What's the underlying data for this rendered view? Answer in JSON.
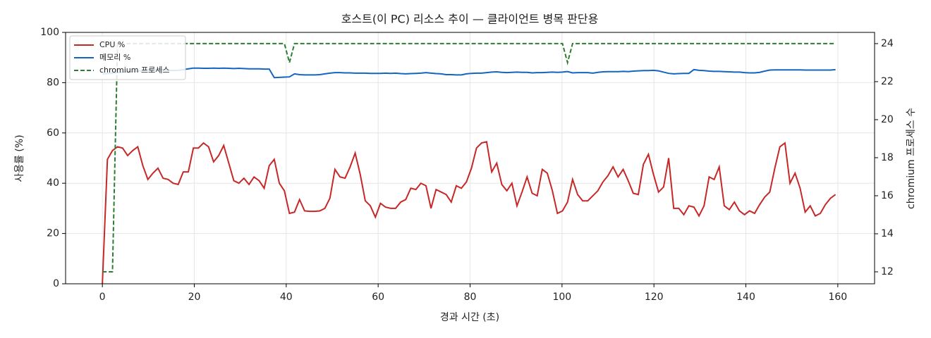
{
  "chart_data": {
    "type": "line",
    "title": "호스트(이 PC) 리소스 추이 — 클라이언트 병목 판단용",
    "xlabel": "경과 시간 (초)",
    "ylabel": "사용률 (%)",
    "y2label": "chromium 프로세스 수",
    "x": [
      0,
      1.1,
      2.2,
      3.3,
      4.4,
      5.5,
      6.6,
      7.7,
      8.8,
      9.9,
      11,
      12.1,
      13.2,
      14.3,
      15.4,
      16.5,
      17.6,
      18.7,
      19.8,
      20.9,
      22,
      23.1,
      24.2,
      25.3,
      26.4,
      27.5,
      28.6,
      29.7,
      30.8,
      31.9,
      33,
      34.1,
      35.2,
      36.3,
      37.4,
      38.5,
      39.6,
      40.7,
      41.8,
      42.9,
      44,
      45.1,
      46.2,
      47.3,
      48.4,
      49.5,
      50.6,
      51.7,
      52.8,
      53.9,
      55,
      56.1,
      57.2,
      58.3,
      59.4,
      60.5,
      61.6,
      62.7,
      63.8,
      64.9,
      66,
      67.1,
      68.2,
      69.3,
      70.4,
      71.5,
      72.6,
      73.7,
      74.8,
      75.9,
      77,
      78.1,
      79.2,
      80.3,
      81.4,
      82.5,
      83.6,
      84.7,
      85.8,
      86.9,
      88,
      89.1,
      90.2,
      91.3,
      92.4,
      93.5,
      94.6,
      95.7,
      96.8,
      97.9,
      99,
      100.1,
      101.2,
      102.3,
      103.4,
      104.5,
      105.6,
      106.7,
      107.8,
      108.9,
      110,
      111.1,
      112.2,
      113.3,
      114.4,
      115.5,
      116.6,
      117.7,
      118.8,
      119.9,
      121,
      122.1,
      123.2,
      124.3,
      125.4,
      126.5,
      127.6,
      128.7,
      129.8,
      130.9,
      132,
      133.1,
      134.2,
      135.3,
      136.4,
      137.5,
      138.6,
      139.7,
      140.8,
      141.9,
      143,
      144.1,
      145.2,
      146.3,
      147.4,
      148.5,
      149.6,
      150.7,
      151.8,
      152.9,
      154,
      155.1,
      156.2,
      157.3,
      158.4,
      159.5
    ],
    "series": [
      {
        "name": "CPU %",
        "color": "#c62828",
        "axis": "y",
        "dash": false,
        "values": [
          0,
          49.5,
          53,
          54.5,
          54,
          51,
          53,
          54.5,
          47,
          41.5,
          44,
          46,
          42,
          41.5,
          40,
          39.5,
          44.5,
          44.5,
          54,
          54,
          56,
          54.5,
          48.5,
          51,
          55,
          48,
          41,
          40,
          42,
          39.5,
          42.5,
          41,
          38,
          47,
          49.5,
          40,
          37,
          28,
          28.5,
          33.5,
          29,
          28.8,
          28.8,
          29,
          30,
          34,
          45.5,
          42.5,
          42,
          46.5,
          52,
          43.5,
          33,
          31,
          26.5,
          32,
          30.5,
          30,
          30,
          32.5,
          33.5,
          38,
          37.5,
          40,
          39,
          30,
          37.5,
          36.5,
          35.5,
          32.5,
          39,
          38,
          40.5,
          46,
          54,
          56,
          56.5,
          44.5,
          48,
          39.5,
          37,
          40,
          31,
          36.5,
          42.5,
          36,
          35,
          45.5,
          44,
          37,
          28,
          29,
          32.5,
          41.5,
          35.5,
          33,
          33,
          35,
          37,
          40.5,
          43,
          46.5,
          42.5,
          45.5,
          41,
          36,
          35.5,
          47.5,
          51.5,
          43.5,
          36.5,
          38.5,
          50,
          30,
          30,
          27.5,
          31,
          30.5,
          27,
          31,
          42.5,
          41.5,
          46.5,
          31,
          29.5,
          32.5,
          29,
          27.5,
          29,
          28,
          31.5,
          34.5,
          36.5,
          46,
          54.5,
          56,
          40,
          44,
          38,
          28.5,
          31,
          27,
          28,
          31.5,
          34,
          35.5
        ]
      },
      {
        "name": "메모리 %",
        "color": "#1565c0",
        "axis": "y",
        "dash": false,
        "values": [
          83.5,
          83.6,
          83.8,
          84,
          84.2,
          84.3,
          84.5,
          84.6,
          84.8,
          85,
          85.2,
          85.3,
          85.1,
          84.9,
          84.8,
          84.9,
          85.2,
          85.5,
          85.8,
          85.8,
          85.7,
          85.7,
          85.8,
          85.7,
          85.8,
          85.7,
          85.6,
          85.7,
          85.6,
          85.5,
          85.5,
          85.5,
          85.4,
          85.4,
          82,
          82.1,
          82.2,
          82.3,
          83.5,
          83.2,
          83.1,
          83.1,
          83.1,
          83.2,
          83.5,
          83.8,
          84,
          84,
          83.9,
          83.9,
          83.8,
          83.8,
          83.8,
          83.7,
          83.7,
          83.7,
          83.8,
          83.7,
          83.8,
          83.6,
          83.5,
          83.6,
          83.7,
          83.8,
          84,
          83.8,
          83.6,
          83.5,
          83.2,
          83.2,
          83.1,
          83.1,
          83.5,
          83.7,
          83.8,
          83.8,
          84,
          84.2,
          84.3,
          84.1,
          84,
          84.1,
          84.2,
          84.1,
          84.1,
          83.9,
          84,
          84,
          84.1,
          84.2,
          84.1,
          84.2,
          84.4,
          83.9,
          84,
          84,
          84,
          83.8,
          84.1,
          84.3,
          84.4,
          84.4,
          84.4,
          84.5,
          84.4,
          84.6,
          84.7,
          84.8,
          84.8,
          84.9,
          84.7,
          84.2,
          83.7,
          83.5,
          83.6,
          83.7,
          83.7,
          85.2,
          84.9,
          84.8,
          84.6,
          84.5,
          84.5,
          84.4,
          84.3,
          84.2,
          84.2,
          84,
          83.9,
          83.9,
          84.1,
          84.6,
          85,
          85.1,
          85.1,
          85.1,
          85.1,
          85.1,
          85.1,
          85,
          85,
          85,
          85,
          85,
          85,
          85.2
        ]
      },
      {
        "name": "chromium 프로세스",
        "color": "#2e7d32",
        "axis": "y2",
        "dash": true,
        "values": [
          12,
          12,
          12,
          24,
          24,
          24,
          24,
          24,
          24,
          24,
          24,
          24,
          24,
          24,
          24,
          24,
          24,
          24,
          24,
          24,
          24,
          24,
          24,
          24,
          24,
          24,
          24,
          24,
          24,
          24,
          24,
          24,
          24,
          24,
          24,
          24,
          24,
          23,
          24,
          24,
          24,
          24,
          24,
          24,
          24,
          24,
          24,
          24,
          24,
          24,
          24,
          24,
          24,
          24,
          24,
          24,
          24,
          24,
          24,
          24,
          24,
          24,
          24,
          24,
          24,
          24,
          24,
          24,
          24,
          24,
          24,
          24,
          24,
          24,
          24,
          24,
          24,
          24,
          24,
          24,
          24,
          24,
          24,
          24,
          24,
          24,
          24,
          24,
          24,
          24,
          24,
          24,
          23,
          24,
          24,
          24,
          24,
          24,
          24,
          24,
          24,
          24,
          24,
          24,
          24,
          24,
          24,
          24,
          24,
          24,
          24,
          24,
          24,
          24,
          24,
          24,
          24,
          24,
          24,
          24,
          24,
          24,
          24,
          24,
          24,
          24,
          24,
          24,
          24,
          24,
          24,
          24,
          24,
          24,
          24,
          24,
          24,
          24,
          24,
          24,
          24,
          24,
          24,
          24,
          24,
          24
        ]
      }
    ],
    "xlim": [
      -8,
      168
    ],
    "xticks": [
      0,
      20,
      40,
      60,
      80,
      100,
      120,
      140,
      160
    ],
    "ylim": [
      0,
      100
    ],
    "yticks": [
      0,
      20,
      40,
      60,
      80,
      100
    ],
    "y2lim": [
      11.37,
      24.59
    ],
    "y2ticks": [
      12,
      14,
      16,
      18,
      20,
      22,
      24
    ],
    "grid": true,
    "legend": "upper-left"
  }
}
